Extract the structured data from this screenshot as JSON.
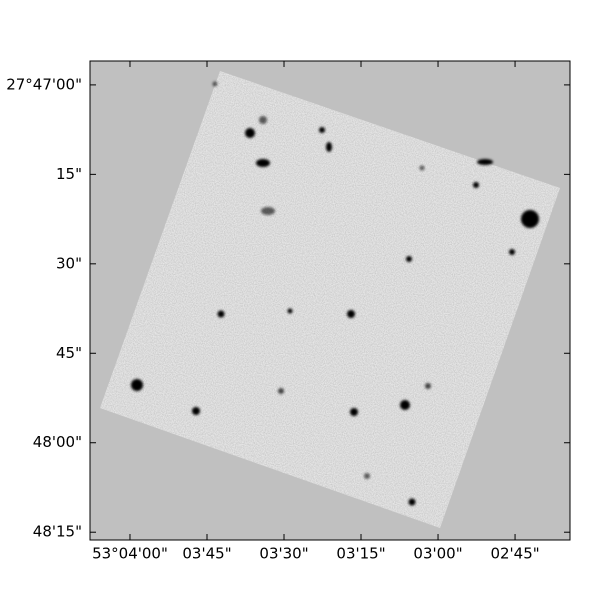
{
  "chart_data": {
    "type": "image",
    "xlim": [
      53.06883,
      53.04286
    ],
    "ylim": [
      -27.80453,
      -27.78222
    ],
    "xticks": [
      {
        "value": 53.066667,
        "label": "53°04'00\""
      },
      {
        "value": 53.0625,
        "label": "03'45\""
      },
      {
        "value": 53.058333,
        "label": "03'30\""
      },
      {
        "value": 53.054167,
        "label": "03'15\""
      },
      {
        "value": 53.05,
        "label": "03'00\""
      },
      {
        "value": 53.045833,
        "label": "02'45\""
      }
    ],
    "yticks": [
      {
        "value": -27.783333,
        "label": "27°47'00\""
      },
      {
        "value": -27.7875,
        "label": "15\""
      },
      {
        "value": -27.791667,
        "label": "30\""
      },
      {
        "value": -27.795833,
        "label": "45\""
      },
      {
        "value": -27.8,
        "label": "48'00\""
      },
      {
        "value": -27.804167,
        "label": "48'15\""
      }
    ]
  }
}
